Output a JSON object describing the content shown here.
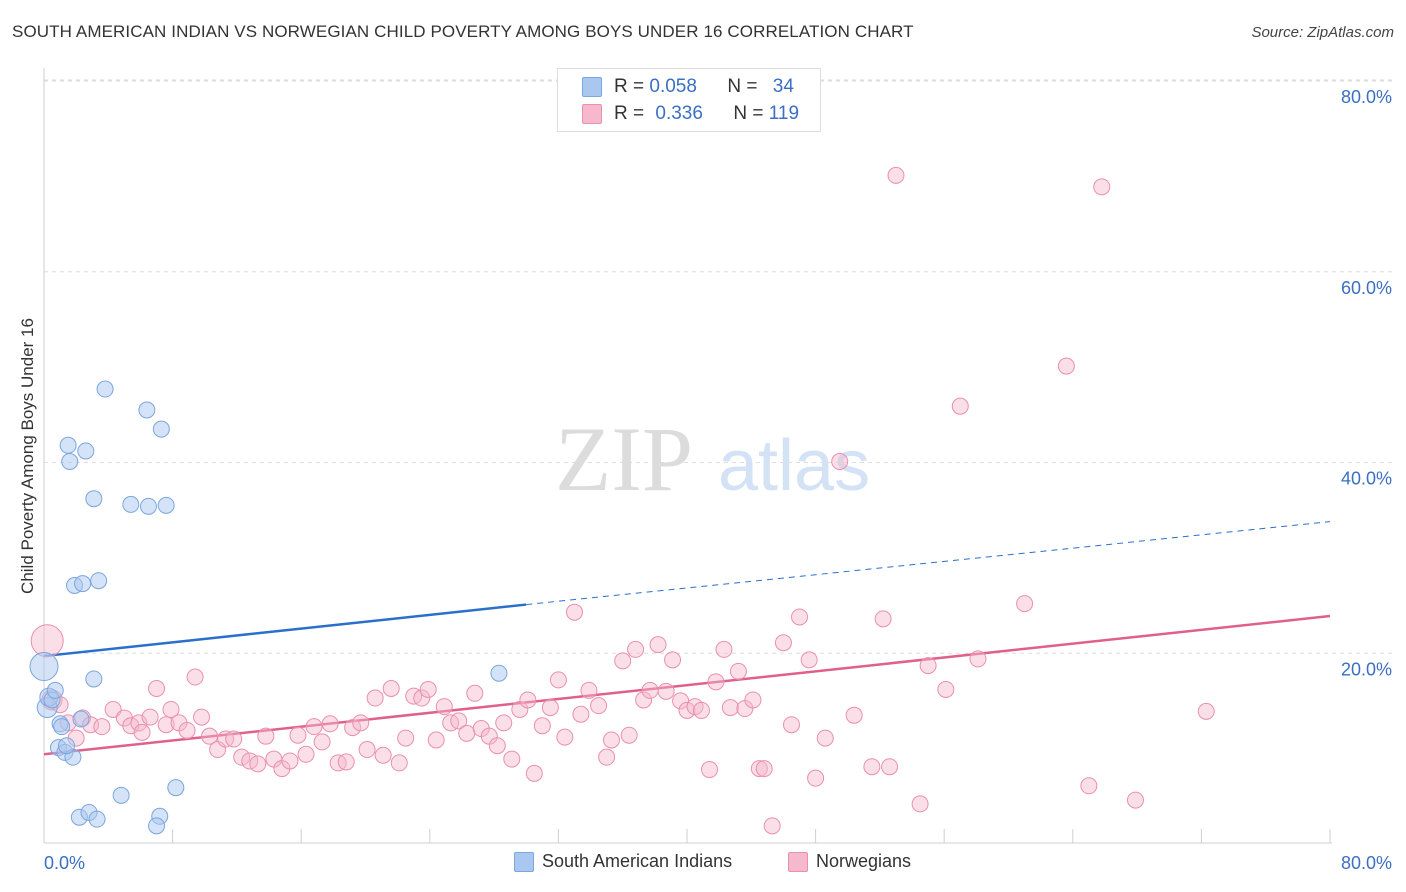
{
  "title": "SOUTH AMERICAN INDIAN VS NORWEGIAN CHILD POVERTY AMONG BOYS UNDER 16 CORRELATION CHART",
  "source": "Source: ZipAtlas.com",
  "watermark": {
    "zip": "ZIP",
    "atlas": "atlas"
  },
  "colors": {
    "blue_fill": "#aac8ef",
    "blue_stroke": "#7aa6de",
    "blue_line": "#2a6fcc",
    "pink_fill": "#f5b8cc",
    "pink_stroke": "#eb8fae",
    "pink_line": "#e0608c",
    "axis_text": "#3a6fc4",
    "grid": "#dddddd"
  },
  "legend": {
    "r1_label": "R = ",
    "r1_value": "0.058",
    "n1_label": "N = ",
    "n1_value": "34",
    "r2_label": "R = ",
    "r2_value": "0.336",
    "n2_label": "N = ",
    "n2_value": "119"
  },
  "chart_data": {
    "type": "scatter",
    "xlabel": "",
    "ylabel": "Child Poverty Among Boys Under 16",
    "xlim": [
      0,
      80
    ],
    "ylim": [
      0,
      80
    ],
    "x_tick_labels": [
      "0.0%",
      "80.0%"
    ],
    "y_ticks": [
      20,
      40,
      60,
      80
    ],
    "y_tick_labels": [
      "20.0%",
      "40.0%",
      "60.0%",
      "80.0%"
    ],
    "grid": "horizontal dashed",
    "legend_placement": "top-center",
    "series": [
      {
        "name": "South American Indians",
        "color": "blue",
        "trend": {
          "x0": 0,
          "y0": 19.6,
          "x1": 30,
          "y1": 25.0,
          "dashed_to": [
            80,
            33.7
          ]
        },
        "points": [
          [
            0,
            18.5,
            14
          ],
          [
            0.2,
            14.2,
            10
          ],
          [
            0.3,
            15.3,
            9
          ],
          [
            0.5,
            15.0,
            8
          ],
          [
            0.7,
            16.0,
            8
          ],
          [
            1.0,
            12.5,
            8
          ],
          [
            0.9,
            10.0,
            8
          ],
          [
            1.3,
            9.5,
            8
          ],
          [
            1.8,
            9.0,
            8
          ],
          [
            1.4,
            10.2,
            8
          ],
          [
            2.3,
            13.0,
            8
          ],
          [
            1.5,
            41.7,
            8
          ],
          [
            1.6,
            40.0,
            8
          ],
          [
            2.6,
            41.1,
            8
          ],
          [
            3.1,
            36.1,
            8
          ],
          [
            3.8,
            47.6,
            8
          ],
          [
            6.4,
            45.4,
            8
          ],
          [
            7.3,
            43.4,
            8
          ],
          [
            5.4,
            35.5,
            8
          ],
          [
            6.5,
            35.3,
            8
          ],
          [
            7.6,
            35.4,
            8
          ],
          [
            1.9,
            27.0,
            8
          ],
          [
            2.4,
            27.2,
            8
          ],
          [
            3.4,
            27.5,
            8
          ],
          [
            3.1,
            17.2,
            8
          ],
          [
            4.8,
            5.0,
            8
          ],
          [
            8.2,
            5.8,
            8
          ],
          [
            2.2,
            2.7,
            8
          ],
          [
            2.8,
            3.2,
            8
          ],
          [
            3.3,
            2.5,
            8
          ],
          [
            7.2,
            2.8,
            8
          ],
          [
            7.0,
            1.8,
            8
          ],
          [
            28.3,
            17.8,
            8
          ],
          [
            1.1,
            12.2,
            8
          ]
        ]
      },
      {
        "name": "Norwegians",
        "color": "pink",
        "trend": {
          "x0": 0,
          "y0": 9.3,
          "x1": 80,
          "y1": 23.8
        },
        "points": [
          [
            0.2,
            21.2,
            16
          ],
          [
            0.5,
            15.0,
            10
          ],
          [
            1.0,
            14.5,
            8
          ],
          [
            1.5,
            12.6,
            8
          ],
          [
            2.0,
            11.0,
            8
          ],
          [
            2.4,
            13.1,
            8
          ],
          [
            2.9,
            12.4,
            8
          ],
          [
            3.6,
            12.2,
            8
          ],
          [
            4.3,
            14.0,
            8
          ],
          [
            5.0,
            13.1,
            8
          ],
          [
            5.4,
            12.3,
            8
          ],
          [
            5.9,
            12.6,
            8
          ],
          [
            6.1,
            11.6,
            8
          ],
          [
            6.6,
            13.2,
            8
          ],
          [
            7.0,
            16.2,
            8
          ],
          [
            7.6,
            12.4,
            8
          ],
          [
            7.9,
            14.0,
            8
          ],
          [
            8.4,
            12.6,
            8
          ],
          [
            8.9,
            11.8,
            8
          ],
          [
            9.4,
            17.4,
            8
          ],
          [
            9.8,
            13.2,
            8
          ],
          [
            10.3,
            11.2,
            8
          ],
          [
            10.8,
            9.8,
            8
          ],
          [
            11.3,
            10.9,
            8
          ],
          [
            11.8,
            10.9,
            8
          ],
          [
            12.3,
            9.0,
            8
          ],
          [
            12.8,
            8.6,
            8
          ],
          [
            13.3,
            8.3,
            8
          ],
          [
            13.8,
            11.2,
            8
          ],
          [
            14.3,
            8.8,
            8
          ],
          [
            14.8,
            7.8,
            8
          ],
          [
            15.3,
            8.6,
            8
          ],
          [
            15.8,
            11.3,
            8
          ],
          [
            16.3,
            9.3,
            8
          ],
          [
            16.8,
            12.2,
            8
          ],
          [
            17.3,
            10.6,
            8
          ],
          [
            17.8,
            12.5,
            8
          ],
          [
            18.3,
            8.4,
            8
          ],
          [
            18.8,
            8.5,
            8
          ],
          [
            19.2,
            12.1,
            8
          ],
          [
            19.7,
            12.6,
            8
          ],
          [
            20.1,
            9.8,
            8
          ],
          [
            20.6,
            15.2,
            8
          ],
          [
            21.1,
            9.2,
            8
          ],
          [
            21.6,
            16.2,
            8
          ],
          [
            22.1,
            8.4,
            8
          ],
          [
            22.5,
            11.0,
            8
          ],
          [
            23.0,
            15.4,
            8
          ],
          [
            23.5,
            15.2,
            8
          ],
          [
            23.9,
            16.1,
            8
          ],
          [
            24.4,
            10.8,
            8
          ],
          [
            24.9,
            14.3,
            8
          ],
          [
            25.3,
            12.6,
            8
          ],
          [
            25.8,
            12.8,
            8
          ],
          [
            26.3,
            11.5,
            8
          ],
          [
            26.8,
            15.7,
            8
          ],
          [
            27.2,
            12.0,
            8
          ],
          [
            27.7,
            11.2,
            8
          ],
          [
            28.2,
            10.2,
            8
          ],
          [
            28.6,
            12.6,
            8
          ],
          [
            29.1,
            8.8,
            8
          ],
          [
            29.6,
            14.0,
            8
          ],
          [
            30.1,
            15.0,
            8
          ],
          [
            30.5,
            7.3,
            8
          ],
          [
            31.0,
            12.3,
            8
          ],
          [
            31.5,
            14.2,
            8
          ],
          [
            32.0,
            17.1,
            8
          ],
          [
            32.4,
            11.1,
            8
          ],
          [
            33.0,
            24.2,
            8
          ],
          [
            33.4,
            13.5,
            8
          ],
          [
            33.9,
            16.0,
            8
          ],
          [
            34.5,
            14.4,
            8
          ],
          [
            35.0,
            9.0,
            8
          ],
          [
            35.3,
            10.8,
            8
          ],
          [
            36.0,
            19.1,
            8
          ],
          [
            36.4,
            11.3,
            8
          ],
          [
            36.8,
            20.3,
            8
          ],
          [
            37.3,
            15.0,
            8
          ],
          [
            37.7,
            16.0,
            8
          ],
          [
            38.2,
            20.8,
            8
          ],
          [
            38.7,
            15.9,
            8
          ],
          [
            39.1,
            19.2,
            8
          ],
          [
            39.6,
            14.9,
            8
          ],
          [
            40.0,
            13.9,
            8
          ],
          [
            40.5,
            14.3,
            8
          ],
          [
            40.9,
            13.9,
            8
          ],
          [
            41.4,
            7.7,
            8
          ],
          [
            41.8,
            16.9,
            8
          ],
          [
            42.3,
            20.3,
            8
          ],
          [
            42.7,
            14.2,
            8
          ],
          [
            43.2,
            18.0,
            8
          ],
          [
            43.6,
            14.1,
            8
          ],
          [
            44.1,
            15.0,
            8
          ],
          [
            44.5,
            7.8,
            8
          ],
          [
            44.8,
            7.8,
            8
          ],
          [
            45.3,
            1.8,
            8
          ],
          [
            46.0,
            21.0,
            8
          ],
          [
            46.5,
            12.4,
            8
          ],
          [
            47.0,
            23.7,
            8
          ],
          [
            47.6,
            19.2,
            8
          ],
          [
            48.0,
            6.8,
            8
          ],
          [
            48.6,
            11.0,
            8
          ],
          [
            49.5,
            40.0,
            8
          ],
          [
            50.4,
            13.4,
            8
          ],
          [
            51.5,
            8.0,
            8
          ],
          [
            52.2,
            23.5,
            8
          ],
          [
            52.6,
            8.0,
            8
          ],
          [
            53.0,
            70.0,
            8
          ],
          [
            54.5,
            4.1,
            8
          ],
          [
            55.0,
            18.6,
            8
          ],
          [
            56.1,
            16.1,
            8
          ],
          [
            57.0,
            45.8,
            8
          ],
          [
            58.1,
            19.3,
            8
          ],
          [
            61.0,
            25.1,
            8
          ],
          [
            63.6,
            50.0,
            8
          ],
          [
            65.0,
            6.0,
            8
          ],
          [
            65.8,
            68.8,
            8
          ],
          [
            67.9,
            4.5,
            8
          ],
          [
            72.3,
            13.8,
            8
          ]
        ]
      }
    ]
  }
}
